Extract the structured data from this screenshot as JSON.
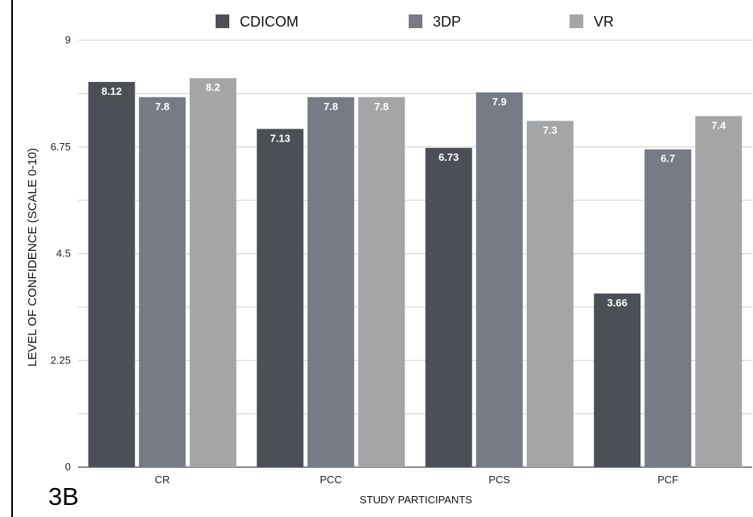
{
  "panel_label": "3B",
  "colors": {
    "CDICOM": "#4c4f55",
    "3DP": "#777b85",
    "VR": "#a3a5a6"
  },
  "chart_data": {
    "type": "bar",
    "title": "",
    "xlabel": "STUDY PARTICIPANTS",
    "ylabel": "LEVEL OF CONFIDENCE (SCALE 0-10)",
    "ylim": [
      0,
      9
    ],
    "yticks": [
      "0",
      "2.25",
      "4.5",
      "6.75",
      "9"
    ],
    "grid": true,
    "legend_position": "top",
    "categories": [
      "CR",
      "PCC",
      "PCS",
      "PCF"
    ],
    "series": [
      {
        "name": "CDICOM",
        "values": [
          8.12,
          7.13,
          6.73,
          3.66
        ],
        "labels": [
          "8.12",
          "7.13",
          "6.73",
          "3.66"
        ]
      },
      {
        "name": "3DP",
        "values": [
          7.8,
          7.8,
          7.9,
          6.7
        ],
        "labels": [
          "7.8",
          "7.8",
          "7.9",
          "6.7"
        ]
      },
      {
        "name": "VR",
        "values": [
          8.2,
          7.8,
          7.3,
          7.4
        ],
        "labels": [
          "8.2",
          "7.8",
          "7.3",
          "7.4"
        ]
      }
    ]
  }
}
